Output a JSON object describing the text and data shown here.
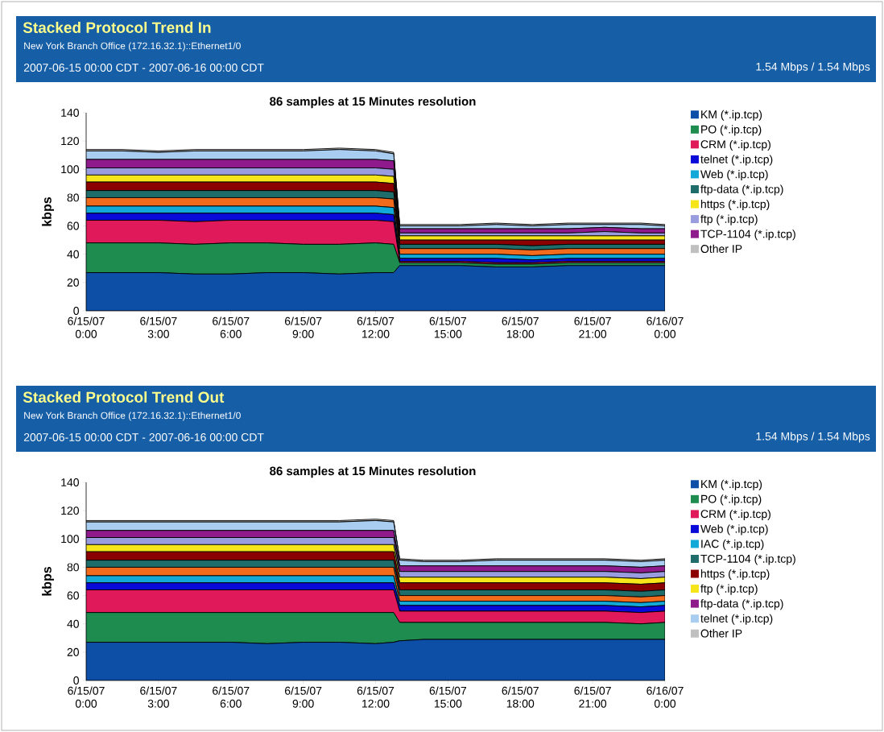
{
  "chart_data": [
    {
      "type": "area",
      "title": "Stacked Protocol Trend In",
      "subtitle": "New York Branch Office (172.16.32.1)::Ethernet1/0",
      "annotations": [
        "2007-06-15 00:00 CDT - 2007-06-16 00:00 CDT",
        "1.54 Mbps / 1.54 Mbps",
        "86 samples at 15 Minutes resolution"
      ],
      "ylabel": "kbps",
      "stacked": true,
      "legend": "right",
      "x": [
        "2007-06-15T00:00",
        "2007-06-15T01:30",
        "2007-06-15T03:00",
        "2007-06-15T04:30",
        "2007-06-15T06:00",
        "2007-06-15T07:30",
        "2007-06-15T09:00",
        "2007-06-15T10:30",
        "2007-06-15T12:00",
        "2007-06-15T12:45",
        "2007-06-15T13:00",
        "2007-06-15T14:00",
        "2007-06-15T15:30",
        "2007-06-15T17:00",
        "2007-06-15T18:30",
        "2007-06-15T20:00",
        "2007-06-15T21:30",
        "2007-06-15T23:00",
        "2007-06-16T00:00"
      ],
      "xlim": [
        "2007-06-15T00:00",
        "2007-06-16T00:00"
      ],
      "ylim": [
        0,
        140
      ],
      "xticks": [
        {
          "value": "2007-06-15T00:00",
          "label": "6/15/07 0:00"
        },
        {
          "value": "2007-06-15T03:00",
          "label": "6/15/07 3:00"
        },
        {
          "value": "2007-06-15T06:00",
          "label": "6/15/07 6:00"
        },
        {
          "value": "2007-06-15T09:00",
          "label": "6/15/07 9:00"
        },
        {
          "value": "2007-06-15T12:00",
          "label": "6/15/07 12:00"
        },
        {
          "value": "2007-06-15T15:00",
          "label": "6/15/07 15:00"
        },
        {
          "value": "2007-06-15T18:00",
          "label": "6/15/07 18:00"
        },
        {
          "value": "2007-06-15T21:00",
          "label": "6/15/07 21:00"
        },
        {
          "value": "2007-06-16T00:00",
          "label": "6/16/07 0:00"
        }
      ],
      "yticks": [
        0,
        20,
        40,
        60,
        80,
        100,
        120,
        140
      ],
      "series": [
        {
          "name": "KM (*.ip.tcp)",
          "color": "#0d4ea6",
          "values": [
            27,
            27,
            27,
            26,
            26,
            27,
            27,
            26,
            27,
            27,
            32,
            32,
            32,
            31,
            31,
            32,
            32,
            32,
            32
          ]
        },
        {
          "name": "PO (*.ip.tcp)",
          "color": "#1e8c4e",
          "values": [
            21,
            21,
            21,
            21,
            22,
            21,
            20,
            21,
            21,
            20,
            2,
            2,
            2,
            2,
            2,
            2,
            2,
            2,
            2
          ]
        },
        {
          "name": "CRM (*.ip.tcp)",
          "color": "#e0195a",
          "values": [
            16,
            16,
            16,
            16,
            16,
            16,
            17,
            17,
            16,
            16,
            1,
            1,
            1,
            1,
            1,
            1,
            1,
            1,
            1
          ]
        },
        {
          "name": "telnet (*.ip.tcp)",
          "color": "#0a0ad8",
          "values": [
            5,
            5,
            5,
            6,
            5,
            5,
            5,
            5,
            5,
            5,
            2,
            2,
            2,
            3,
            2,
            2,
            2,
            2,
            2
          ]
        },
        {
          "name": "Web (*.ip.tcp)",
          "color": "#12a8d8",
          "values": [
            5,
            5,
            5,
            5,
            5,
            5,
            5,
            5,
            5,
            5,
            3,
            3,
            3,
            3,
            3,
            3,
            3,
            3,
            3
          ]
        },
        {
          "color": "#f26a1b",
          "values": [
            6,
            6,
            6,
            6,
            6,
            6,
            6,
            6,
            6,
            6,
            4,
            4,
            4,
            4,
            4,
            4,
            4,
            4,
            4
          ]
        },
        {
          "name": "ftp-data (*.ip.tcp)",
          "color": "#1f6d6a",
          "values": [
            5,
            5,
            5,
            5,
            5,
            5,
            5,
            5,
            5,
            5,
            3,
            3,
            3,
            3,
            3,
            3,
            3,
            3,
            3
          ]
        },
        {
          "color": "#8b0000",
          "values": [
            6,
            6,
            6,
            6,
            6,
            6,
            6,
            6,
            6,
            6,
            3,
            3,
            3,
            3,
            4,
            3,
            3,
            3,
            3
          ]
        },
        {
          "name": "https (*.ip.tcp)",
          "color": "#f5e51a",
          "values": [
            5,
            5,
            5,
            5,
            5,
            5,
            5,
            5,
            5,
            5,
            3,
            3,
            3,
            3,
            3,
            3,
            3,
            3,
            3
          ]
        },
        {
          "name": "ftp (*.ip.tcp)",
          "color": "#9a9ce0",
          "values": [
            5,
            5,
            5,
            5,
            5,
            5,
            5,
            5,
            5,
            5,
            2,
            2,
            2,
            2,
            2,
            2,
            3,
            2,
            2
          ]
        },
        {
          "name": "TCP-1104 (*.ip.tcp)",
          "color": "#8e1a8c",
          "values": [
            6,
            6,
            6,
            6,
            6,
            6,
            6,
            6,
            6,
            6,
            3,
            3,
            3,
            3,
            3,
            3,
            3,
            3,
            3
          ]
        },
        {
          "color": "#a8cdf0",
          "values": [
            6,
            6,
            5,
            6,
            6,
            6,
            6,
            7,
            6,
            5,
            2,
            2,
            2,
            3,
            2,
            3,
            2,
            3,
            2
          ]
        },
        {
          "name": "Other IP",
          "color": "#c0c0c0",
          "values": [
            1,
            1,
            1,
            1,
            1,
            1,
            1,
            1,
            1,
            1,
            1,
            1,
            1,
            1,
            1,
            1,
            1,
            1,
            1
          ]
        }
      ]
    },
    {
      "type": "area",
      "title": "Stacked Protocol Trend Out",
      "subtitle": "New York Branch Office (172.16.32.1)::Ethernet1/0",
      "annotations": [
        "2007-06-15 00:00 CDT - 2007-06-16 00:00 CDT",
        "1.54 Mbps / 1.54 Mbps",
        "86 samples at 15 Minutes resolution"
      ],
      "ylabel": "kbps",
      "stacked": true,
      "legend": "right",
      "x": [
        "2007-06-15T00:00",
        "2007-06-15T01:30",
        "2007-06-15T03:00",
        "2007-06-15T04:30",
        "2007-06-15T06:00",
        "2007-06-15T07:30",
        "2007-06-15T09:00",
        "2007-06-15T10:30",
        "2007-06-15T12:00",
        "2007-06-15T12:45",
        "2007-06-15T13:00",
        "2007-06-15T14:00",
        "2007-06-15T15:30",
        "2007-06-15T17:00",
        "2007-06-15T18:30",
        "2007-06-15T20:00",
        "2007-06-15T21:30",
        "2007-06-15T23:00",
        "2007-06-16T00:00"
      ],
      "xlim": [
        "2007-06-15T00:00",
        "2007-06-16T00:00"
      ],
      "ylim": [
        0,
        140
      ],
      "xticks": [
        {
          "value": "2007-06-15T00:00",
          "label": "6/15/07 0:00"
        },
        {
          "value": "2007-06-15T03:00",
          "label": "6/15/07 3:00"
        },
        {
          "value": "2007-06-15T06:00",
          "label": "6/15/07 6:00"
        },
        {
          "value": "2007-06-15T09:00",
          "label": "6/15/07 9:00"
        },
        {
          "value": "2007-06-15T12:00",
          "label": "6/15/07 12:00"
        },
        {
          "value": "2007-06-15T15:00",
          "label": "6/15/07 15:00"
        },
        {
          "value": "2007-06-15T18:00",
          "label": "6/15/07 18:00"
        },
        {
          "value": "2007-06-15T21:00",
          "label": "6/15/07 21:00"
        },
        {
          "value": "2007-06-16T00:00",
          "label": "6/16/07 0:00"
        }
      ],
      "yticks": [
        0,
        20,
        40,
        60,
        80,
        100,
        120,
        140
      ],
      "series": [
        {
          "name": "KM (*.ip.tcp)",
          "color": "#0d4ea6",
          "values": [
            27,
            27,
            27,
            27,
            27,
            26,
            27,
            27,
            26,
            27,
            28,
            29,
            29,
            29,
            29,
            29,
            29,
            29,
            29
          ]
        },
        {
          "name": "PO (*.ip.tcp)",
          "color": "#1e8c4e",
          "values": [
            21,
            21,
            21,
            21,
            21,
            22,
            21,
            21,
            22,
            21,
            13,
            12,
            12,
            12,
            12,
            12,
            12,
            11,
            12
          ]
        },
        {
          "name": "CRM (*.ip.tcp)",
          "color": "#e0195a",
          "values": [
            16,
            16,
            16,
            16,
            16,
            16,
            16,
            16,
            16,
            16,
            8,
            8,
            8,
            8,
            8,
            8,
            8,
            8,
            8
          ]
        },
        {
          "name": "Web (*.ip.tcp)",
          "color": "#0a0ad8",
          "values": [
            5,
            5,
            5,
            5,
            5,
            5,
            5,
            5,
            5,
            5,
            4,
            4,
            4,
            4,
            4,
            4,
            4,
            4,
            4
          ]
        },
        {
          "name": "IAC (*.ip.tcp)",
          "color": "#12a8d8",
          "values": [
            5,
            5,
            5,
            5,
            5,
            5,
            5,
            5,
            5,
            5,
            3,
            3,
            3,
            3,
            3,
            3,
            3,
            3,
            3
          ]
        },
        {
          "color": "#f26a1b",
          "values": [
            6,
            6,
            6,
            6,
            6,
            6,
            6,
            6,
            6,
            6,
            4,
            4,
            4,
            4,
            4,
            4,
            4,
            4,
            4
          ]
        },
        {
          "name": "TCP-1104 (*.ip.tcp)",
          "color": "#1f6d6a",
          "values": [
            5,
            5,
            5,
            5,
            5,
            5,
            5,
            5,
            5,
            5,
            4,
            4,
            4,
            4,
            4,
            4,
            4,
            4,
            4
          ]
        },
        {
          "name": "https (*.ip.tcp)",
          "color": "#8b0000",
          "values": [
            6,
            6,
            6,
            6,
            6,
            6,
            6,
            6,
            6,
            6,
            5,
            5,
            5,
            5,
            5,
            5,
            5,
            5,
            5
          ]
        },
        {
          "name": "ftp (*.ip.tcp)",
          "color": "#f5e51a",
          "values": [
            5,
            5,
            5,
            5,
            5,
            5,
            5,
            5,
            5,
            5,
            4,
            4,
            4,
            4,
            4,
            4,
            4,
            4,
            4
          ]
        },
        {
          "color": "#9a9ce0",
          "values": [
            5,
            5,
            5,
            5,
            5,
            5,
            5,
            5,
            5,
            5,
            4,
            4,
            4,
            4,
            4,
            4,
            4,
            4,
            4
          ]
        },
        {
          "name": "ftp-data (*.ip.tcp)",
          "color": "#8e1a8c",
          "values": [
            5,
            5,
            5,
            5,
            5,
            5,
            5,
            5,
            5,
            5,
            4,
            4,
            4,
            4,
            4,
            4,
            4,
            4,
            4
          ]
        },
        {
          "name": "telnet (*.ip.tcp)",
          "color": "#a8cdf0",
          "values": [
            6,
            6,
            6,
            6,
            6,
            6,
            6,
            6,
            7,
            6,
            4,
            3,
            3,
            4,
            4,
            4,
            4,
            4,
            4
          ]
        },
        {
          "name": "Other IP",
          "color": "#c0c0c0",
          "values": [
            1,
            1,
            1,
            1,
            1,
            1,
            1,
            1,
            1,
            1,
            1,
            1,
            1,
            1,
            1,
            1,
            1,
            1,
            1
          ]
        }
      ]
    }
  ]
}
